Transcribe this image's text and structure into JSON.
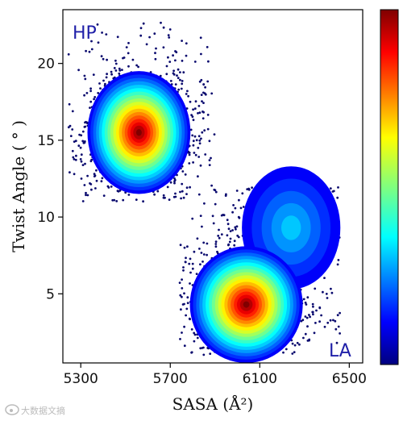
{
  "chart_data": {
    "type": "scatter",
    "title": "",
    "xlabel": "SASA (Å²)",
    "ylabel": "Twist Angle ( ° )",
    "xlim": [
      5220,
      6560
    ],
    "ylim": [
      0.5,
      23.5
    ],
    "xticks": [
      5300,
      5700,
      6100,
      6500
    ],
    "yticks": [
      5,
      10,
      15,
      20
    ],
    "grid": false,
    "colormap": "jet",
    "colorbar": true,
    "colorbar_ticks": [],
    "annotations": [
      {
        "text": "HP",
        "color": "#1f1fa8"
      },
      {
        "text": "LA",
        "color": "#1f1fa8"
      }
    ],
    "clusters": [
      {
        "name": "HP",
        "density_peak": {
          "x": 5560,
          "y": 15.5
        },
        "x_range": [
          5240,
          5900
        ],
        "y_range": [
          11.0,
          23.0
        ]
      },
      {
        "name": "LA",
        "density_peak": {
          "x": 6040,
          "y": 4.3
        },
        "x_range": [
          5740,
          6460
        ],
        "y_range": [
          1.0,
          12.0
        ]
      }
    ]
  },
  "watermark": {
    "text": "大数据文摘",
    "icon": "weibo-icon"
  }
}
